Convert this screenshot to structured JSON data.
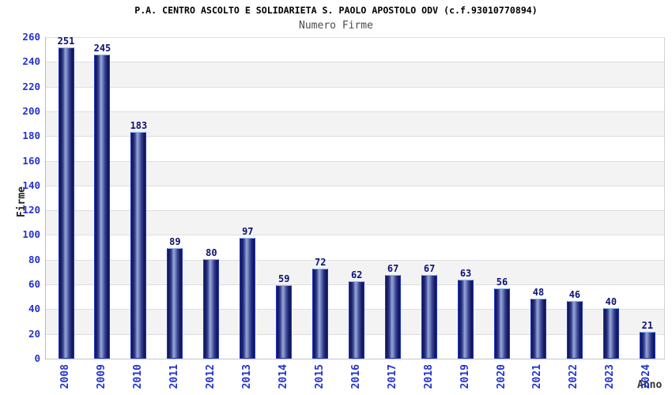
{
  "header": {
    "title": "P.A. CENTRO ASCOLTO E SOLIDARIETA S. PAOLO APOSTOLO ODV (c.f.93010770894)",
    "subtitle": "Numero Firme"
  },
  "axes": {
    "y_label": "Firme",
    "x_label": "Anno"
  },
  "chart_data": {
    "type": "bar",
    "title": "P.A. CENTRO ASCOLTO E SOLIDARIETA S. PAOLO APOSTOLO ODV (c.f.93010770894)",
    "subtitle": "Numero Firme",
    "xlabel": "Anno",
    "ylabel": "Firme",
    "categories": [
      "2008",
      "2009",
      "2010",
      "2011",
      "2012",
      "2013",
      "2014",
      "2015",
      "2016",
      "2017",
      "2018",
      "2019",
      "2020",
      "2021",
      "2022",
      "2023",
      "2024"
    ],
    "values": [
      251,
      245,
      183,
      89,
      80,
      97,
      59,
      72,
      62,
      67,
      67,
      63,
      56,
      48,
      46,
      40,
      21
    ],
    "ylim": [
      0,
      260
    ],
    "ytick_step": 20,
    "grid": true,
    "legend": "none",
    "band_colors": [
      "#ffffff",
      "#f3f3f3"
    ],
    "colors": {
      "bar_dark": "#10165a",
      "bar_light": "#97a5da",
      "bar_border": "#2135c4",
      "tick_text": "#2433cc",
      "value_text": "#0d1275",
      "gridline": "#dedede"
    }
  }
}
